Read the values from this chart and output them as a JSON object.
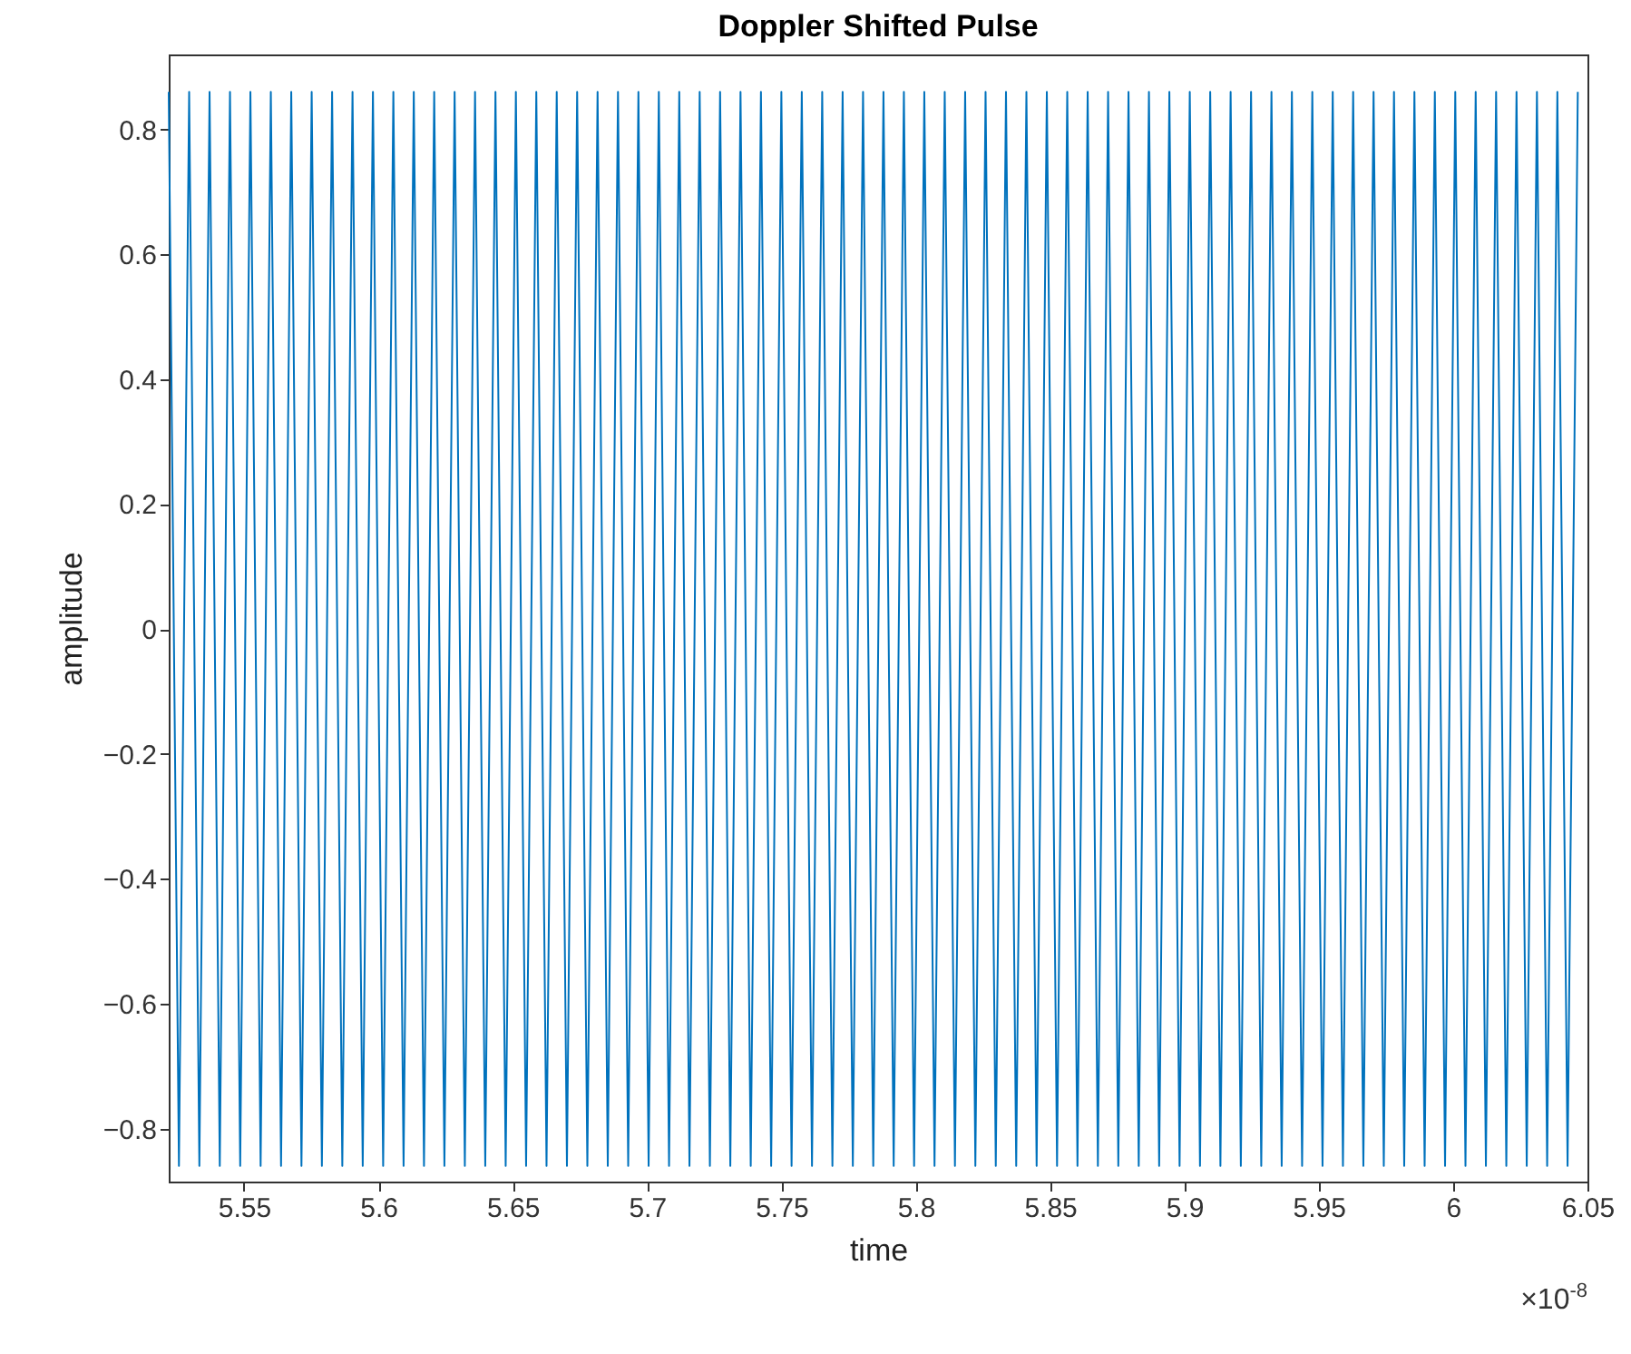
{
  "chart_data": {
    "type": "line",
    "title": "Doppler Shifted Pulse",
    "xlabel": "time",
    "ylabel": "amplitude",
    "annotations": [
      "×10$^{-8}$"
    ],
    "xlim": [
      5.522,
      6.05
    ],
    "xticks": [
      5.55,
      5.6,
      5.65,
      5.7,
      5.75,
      5.8,
      5.85,
      5.9,
      5.95,
      6,
      6.05
    ],
    "ylim": [
      -0.885,
      0.92
    ],
    "yticks": [
      -0.8,
      -0.6,
      -0.4,
      -0.2,
      0,
      0.2,
      0.4,
      0.6,
      0.8
    ],
    "grid": false,
    "marker": "none",
    "line_style": "solid",
    "x": [
      5.522,
      5.5258,
      5.5296,
      5.5334,
      5.5372,
      5.541,
      5.5448,
      5.5486,
      5.5524,
      5.5562,
      5.56,
      5.5638,
      5.5676,
      5.5714,
      5.5752,
      5.579,
      5.5828,
      5.5866,
      5.5904,
      5.5942,
      5.598,
      5.6018,
      5.6056,
      5.6094,
      5.6132,
      5.617,
      5.6208,
      5.6246,
      5.6284,
      5.6322,
      5.636,
      5.6398,
      5.6436,
      5.6474,
      5.6512,
      5.655,
      5.6588,
      5.6626,
      5.6664,
      5.6702,
      5.674,
      5.6778,
      5.6816,
      5.6854,
      5.6892,
      5.693,
      5.6968,
      5.7006,
      5.7044,
      5.7082,
      5.712,
      5.7158,
      5.7196,
      5.7234,
      5.7272,
      5.731,
      5.7348,
      5.7386,
      5.7424,
      5.7462,
      5.75,
      5.7538,
      5.7576,
      5.7614,
      5.7652,
      5.769,
      5.7728,
      5.7766,
      5.7804,
      5.7842,
      5.788,
      5.7918,
      5.7956,
      5.7994,
      5.8032,
      5.807,
      5.8108,
      5.8146,
      5.8184,
      5.8222,
      5.826,
      5.8298,
      5.8336,
      5.8374,
      5.8412,
      5.845,
      5.8488,
      5.8526,
      5.8564,
      5.8602,
      5.864,
      5.8678,
      5.8716,
      5.8754,
      5.8792,
      5.883,
      5.8868,
      5.8906,
      5.8944,
      5.8982,
      5.902,
      5.9058,
      5.9096,
      5.9134,
      5.9172,
      5.921,
      5.9248,
      5.9286,
      5.9324,
      5.9362,
      5.94,
      5.9438,
      5.9476,
      5.9514,
      5.9552,
      5.959,
      5.9628,
      5.9666,
      5.9704,
      5.9742,
      5.978,
      5.9818,
      5.9856,
      5.9894,
      5.9932,
      5.997,
      6.0008,
      6.0046,
      6.0084,
      6.0122,
      6.016,
      6.0198,
      6.0236,
      6.0274,
      6.0312,
      6.035,
      6.0388,
      6.0426,
      6.0464
    ],
    "series": [
      {
        "color": "#0072bd",
        "values": [
          0.86,
          -0.86,
          0.86,
          -0.86,
          0.86,
          -0.86,
          0.86,
          -0.86,
          0.86,
          -0.86,
          0.86,
          -0.86,
          0.86,
          -0.86,
          0.86,
          -0.86,
          0.86,
          -0.86,
          0.86,
          -0.86,
          0.86,
          -0.86,
          0.86,
          -0.86,
          0.86,
          -0.86,
          0.86,
          -0.86,
          0.86,
          -0.86,
          0.86,
          -0.86,
          0.86,
          -0.86,
          0.86,
          -0.86,
          0.86,
          -0.86,
          0.86,
          -0.86,
          0.86,
          -0.86,
          0.86,
          -0.86,
          0.86,
          -0.86,
          0.86,
          -0.86,
          0.86,
          -0.86,
          0.86,
          -0.86,
          0.86,
          -0.86,
          0.86,
          -0.86,
          0.86,
          -0.86,
          0.86,
          -0.86,
          0.86,
          -0.86,
          0.86,
          -0.86,
          0.86,
          -0.86,
          0.86,
          -0.86,
          0.86,
          -0.86,
          0.86,
          -0.86,
          0.86,
          -0.86,
          0.86,
          -0.86,
          0.86,
          -0.86,
          0.86,
          -0.86,
          0.86,
          -0.86,
          0.86,
          -0.86,
          0.86,
          -0.86,
          0.86,
          -0.86,
          0.86,
          -0.86,
          0.86,
          -0.86,
          0.86,
          -0.86,
          0.86,
          -0.86,
          0.86,
          -0.86,
          0.86,
          -0.86,
          0.86,
          -0.86,
          0.86,
          -0.86,
          0.86,
          -0.86,
          0.86,
          -0.86,
          0.86,
          -0.86,
          0.86,
          -0.86,
          0.86,
          -0.86,
          0.86,
          -0.86,
          0.86,
          -0.86,
          0.86,
          -0.86,
          0.86,
          -0.86,
          0.86,
          -0.86,
          0.86,
          -0.86,
          0.86,
          -0.86,
          0.86,
          -0.86,
          0.86,
          -0.86,
          0.86,
          -0.86,
          0.86,
          -0.86,
          0.86,
          -0.86,
          0.86
        ]
      }
    ]
  }
}
